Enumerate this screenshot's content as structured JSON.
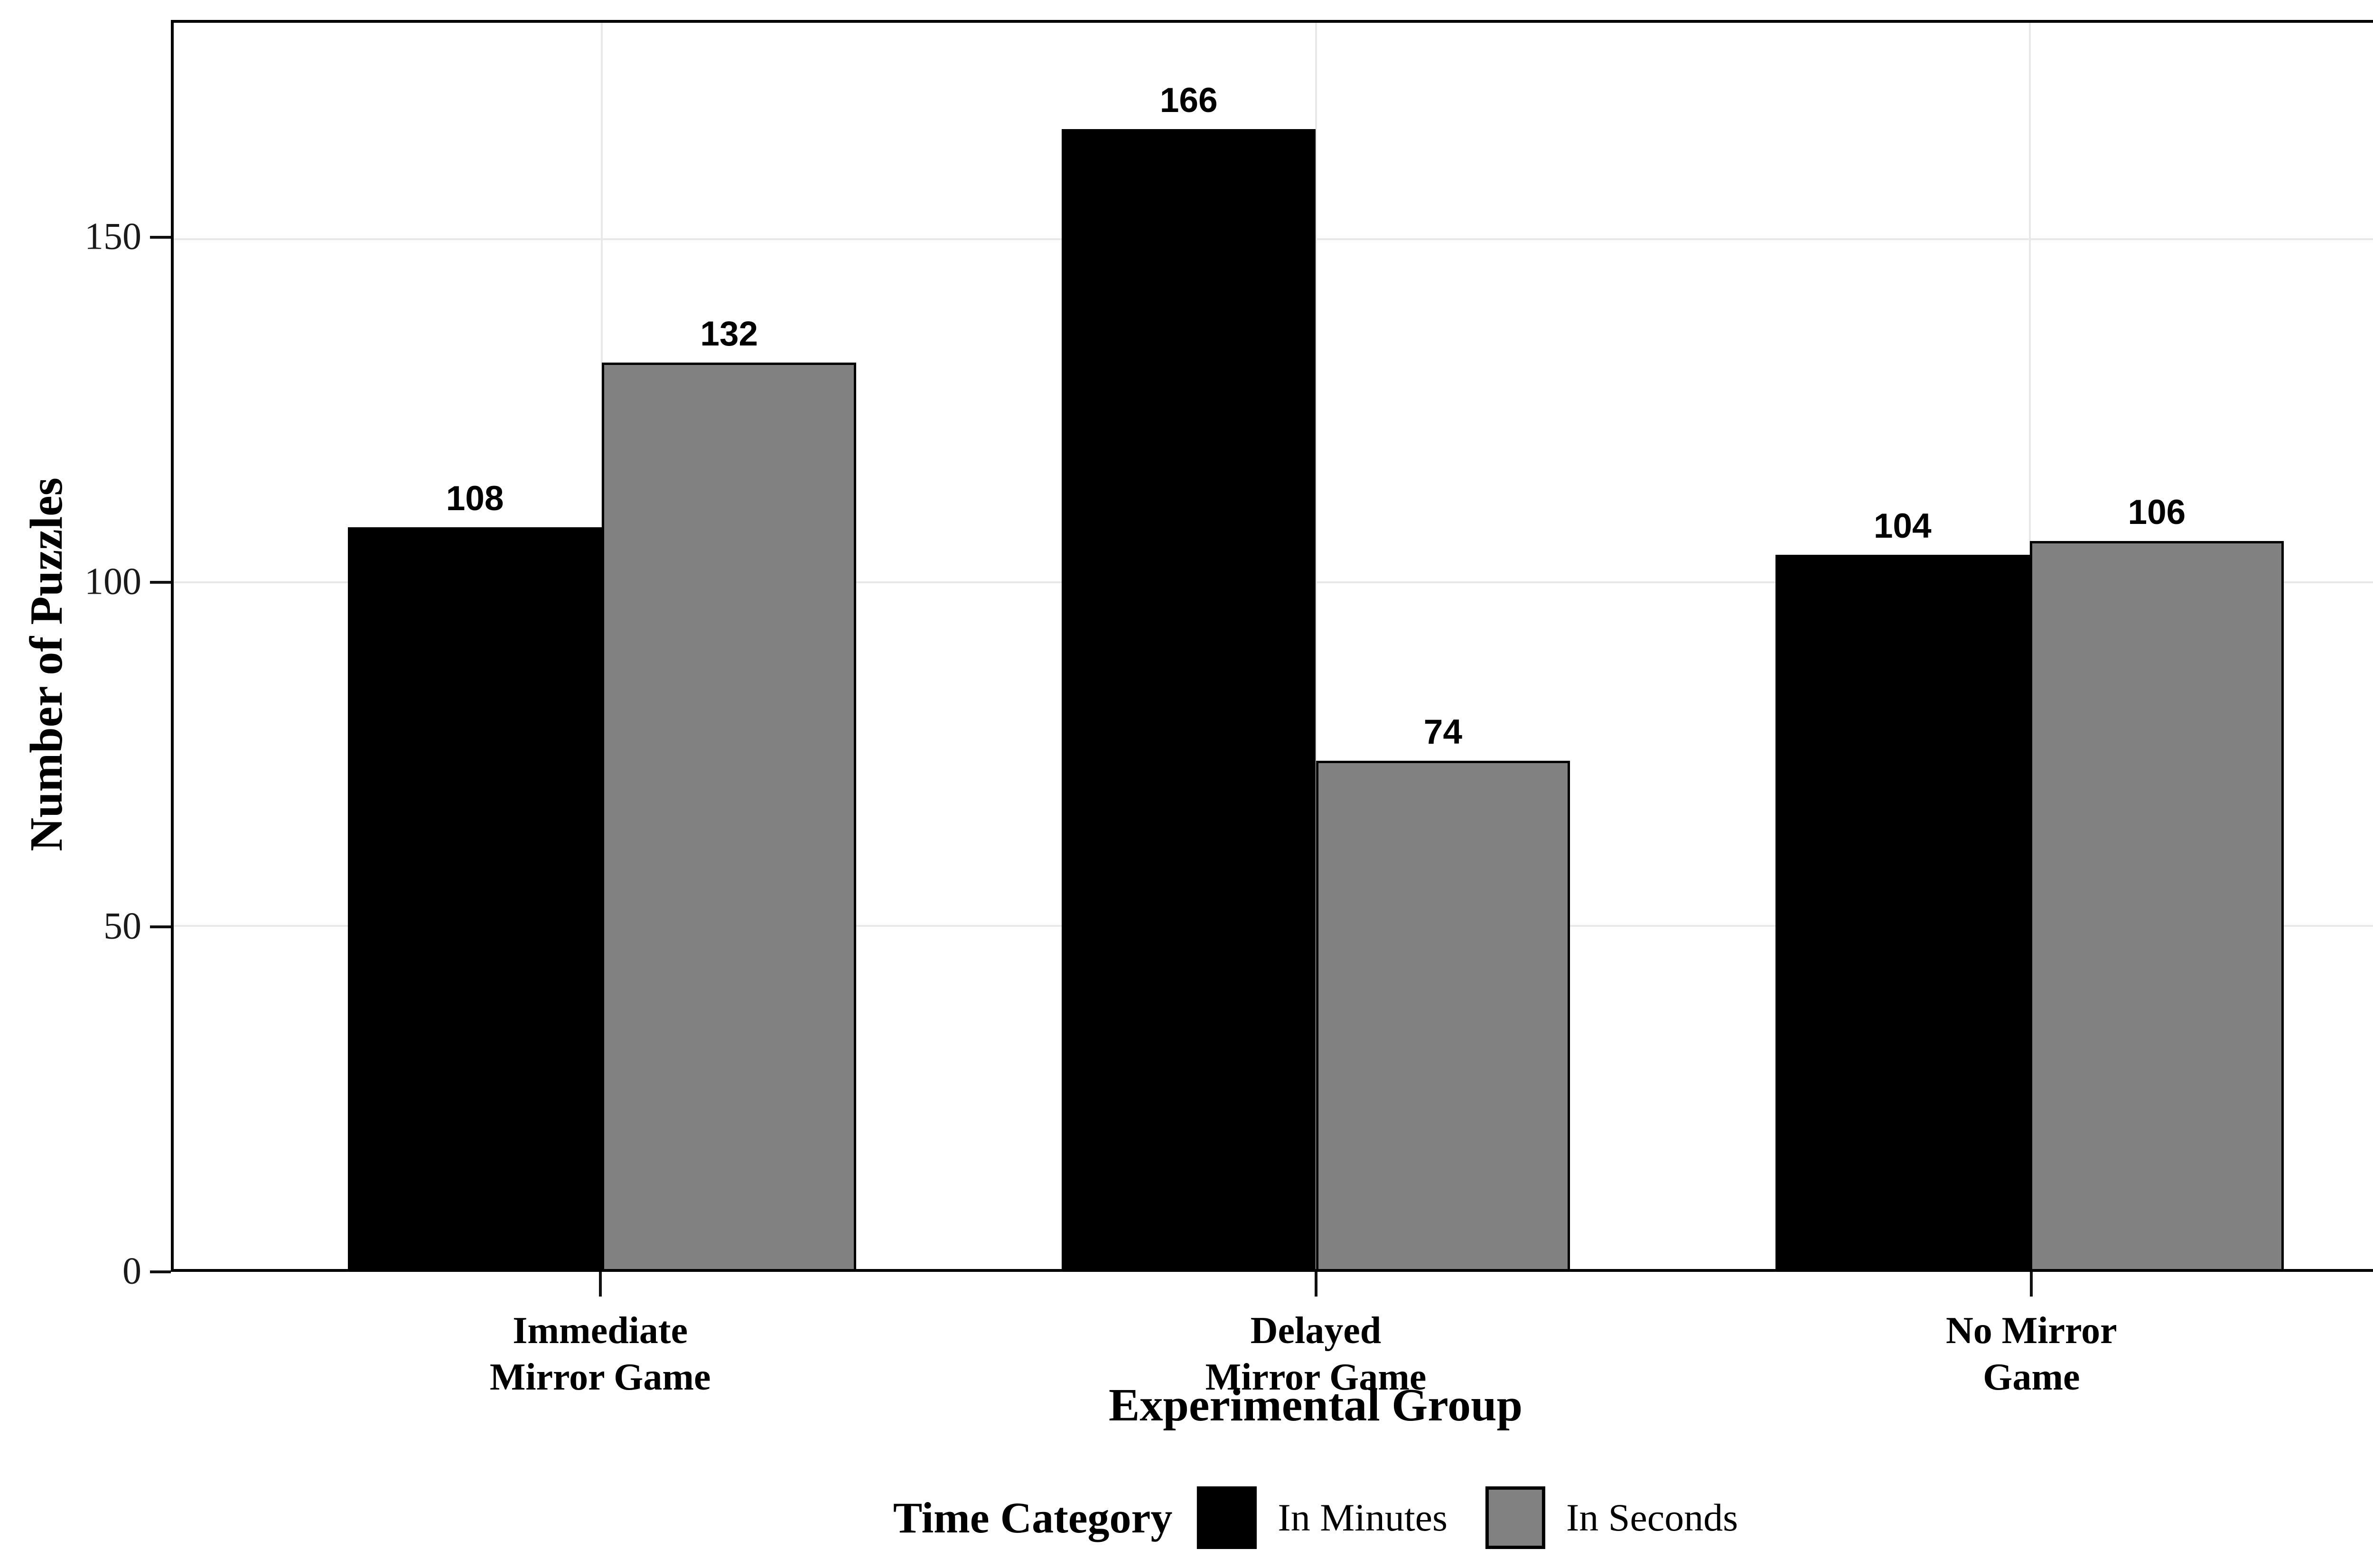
{
  "chart_data": {
    "type": "bar",
    "title": "",
    "xlabel": "Experimental Group",
    "ylabel": "Number of Puzzles",
    "categories": [
      "Immediate\nMirror Game",
      "Delayed\nMirror Game",
      "No Mirror\nGame"
    ],
    "series": [
      {
        "name": "In Minutes",
        "color": "#000000",
        "values": [
          108,
          166,
          104
        ]
      },
      {
        "name": "In Seconds",
        "color": "#818181",
        "values": [
          132,
          74,
          106
        ]
      }
    ],
    "bar_value_labels_shown": true,
    "legend": {
      "title": "Time Category",
      "position": "bottom"
    },
    "y_ticks": [
      0,
      50,
      100,
      150
    ],
    "ylim": [
      0,
      181.5
    ],
    "grid": {
      "on": true,
      "horizontal_at": [
        50,
        100,
        150
      ],
      "vertical_at": "category-centers",
      "color": "#e8e8e8"
    },
    "colors": {
      "panel_border": "#000000",
      "bar_outline": "#000000",
      "background": "#ffffff",
      "tick": "#111111",
      "text": "#000000"
    }
  }
}
